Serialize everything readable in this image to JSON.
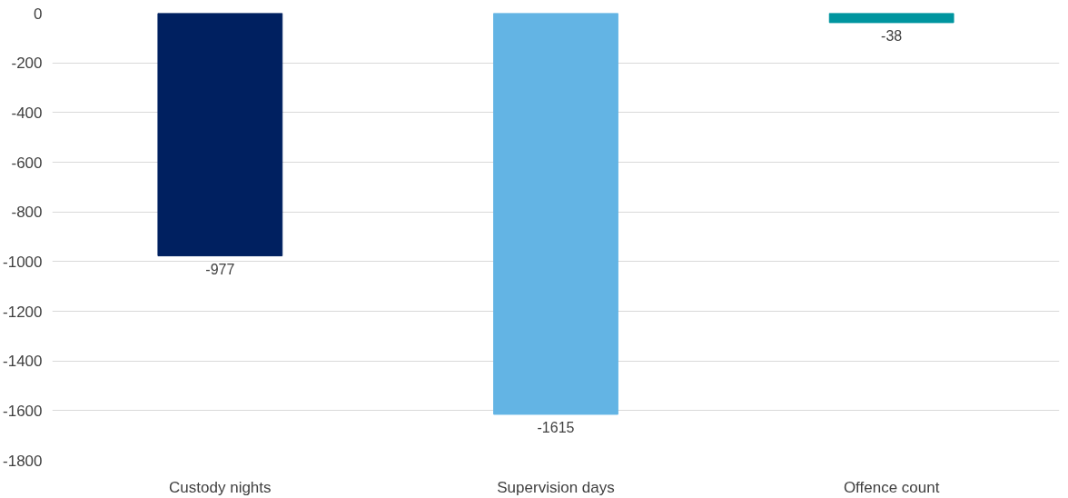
{
  "chart_data": {
    "type": "bar",
    "categories": [
      "Custody nights",
      "Supervision days",
      "Offence count"
    ],
    "values": [
      -977,
      -1615,
      -38
    ],
    "colors": [
      "#002060",
      "#63b4e4",
      "#00959f"
    ],
    "ylim": [
      -1800,
      0
    ],
    "yticks": [
      0,
      -200,
      -400,
      -600,
      -800,
      -1000,
      -1200,
      -1400,
      -1600,
      -1800
    ],
    "grid": "y",
    "data_labels": true
  }
}
